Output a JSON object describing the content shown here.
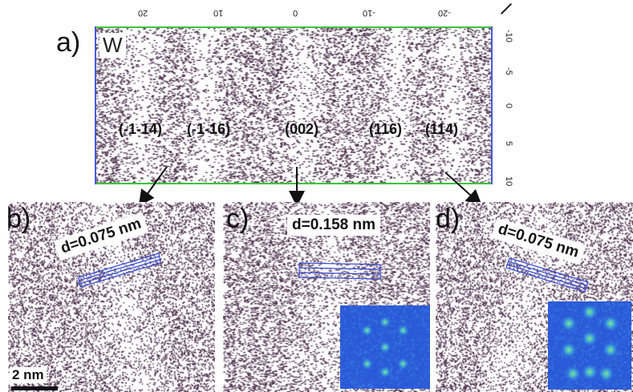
{
  "panel_a": {
    "label": "a)",
    "element": "W",
    "top_axis_ticks": [
      "20",
      "10",
      "0",
      "-10",
      "-20"
    ],
    "right_axis_ticks": [
      "-10",
      "-5",
      "0",
      "5",
      "10"
    ],
    "planes": [
      "(-1-14)",
      "(-1-16)",
      "(002)",
      "(116)",
      "(114)"
    ]
  },
  "panel_b": {
    "label": "b)",
    "d_spacing": "d=0.075 nm",
    "scale_bar": "2 nm"
  },
  "panel_c": {
    "label": "c)",
    "d_spacing": "d=0.158 nm"
  },
  "panel_d": {
    "label": "d)",
    "d_spacing": "d=0.075 nm"
  },
  "colors": {
    "atoms": "#4a2c4a",
    "lattice_lines": "#3a4fd8",
    "frame_top_bottom": "#3cc43c",
    "frame_sides": "#4a5ad8",
    "fft_bg": "#2b5ad8"
  }
}
